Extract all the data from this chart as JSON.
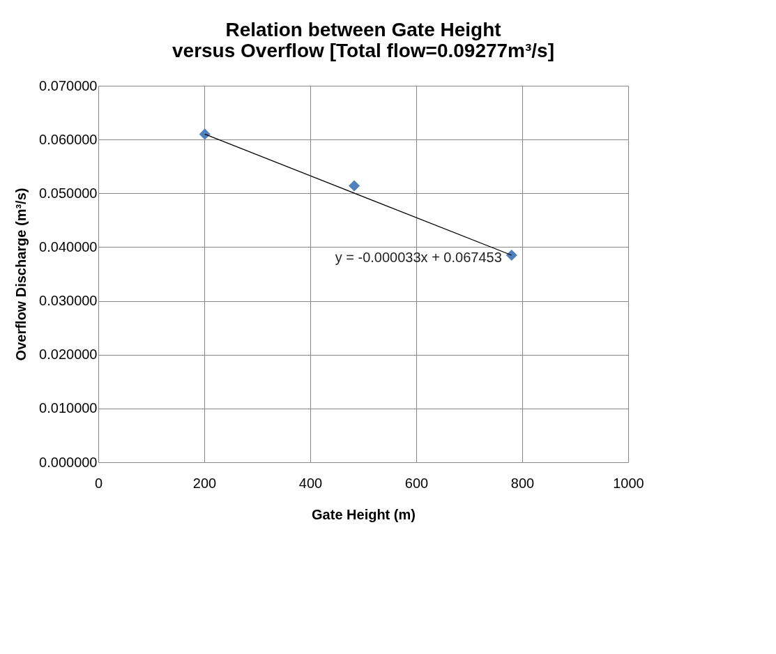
{
  "chart_data": {
    "type": "scatter",
    "title": [
      "Relation between Gate Height",
      "versus Overflow [Total flow=0.09277m³/s]"
    ],
    "xlabel": "Gate Height (m)",
    "ylabel": "Overflow Discharge (m³/s)",
    "series": [
      {
        "color": "#4f81bd",
        "marker": "diamond",
        "x": [
          201,
          483,
          780
        ],
        "values": [
          0.061,
          0.0514,
          0.0385
        ]
      },
      {
        "type": "line",
        "color": "#000000",
        "marker": "none",
        "x": [
          201,
          780
        ],
        "values": [
          0.061,
          0.0385
        ]
      }
    ],
    "xlim": [
      0,
      1000
    ],
    "xticks": [
      0,
      200,
      400,
      600,
      800,
      1000
    ],
    "ylim": [
      0,
      0.07
    ],
    "yticks": [
      {
        "value": 0,
        "label": "0.000000"
      },
      {
        "value": 0.01,
        "label": "0.010000"
      },
      {
        "value": 0.02,
        "label": "0.020000"
      },
      {
        "value": 0.03,
        "label": "0.030000"
      },
      {
        "value": 0.04,
        "label": "0.040000"
      },
      {
        "value": 0.05,
        "label": "0.050000"
      },
      {
        "value": 0.06,
        "label": "0.060000"
      },
      {
        "value": 0.07,
        "label": "0.070000"
      }
    ],
    "grid": true,
    "annotations": [
      "y = -0.000033x + 0.067453"
    ]
  }
}
